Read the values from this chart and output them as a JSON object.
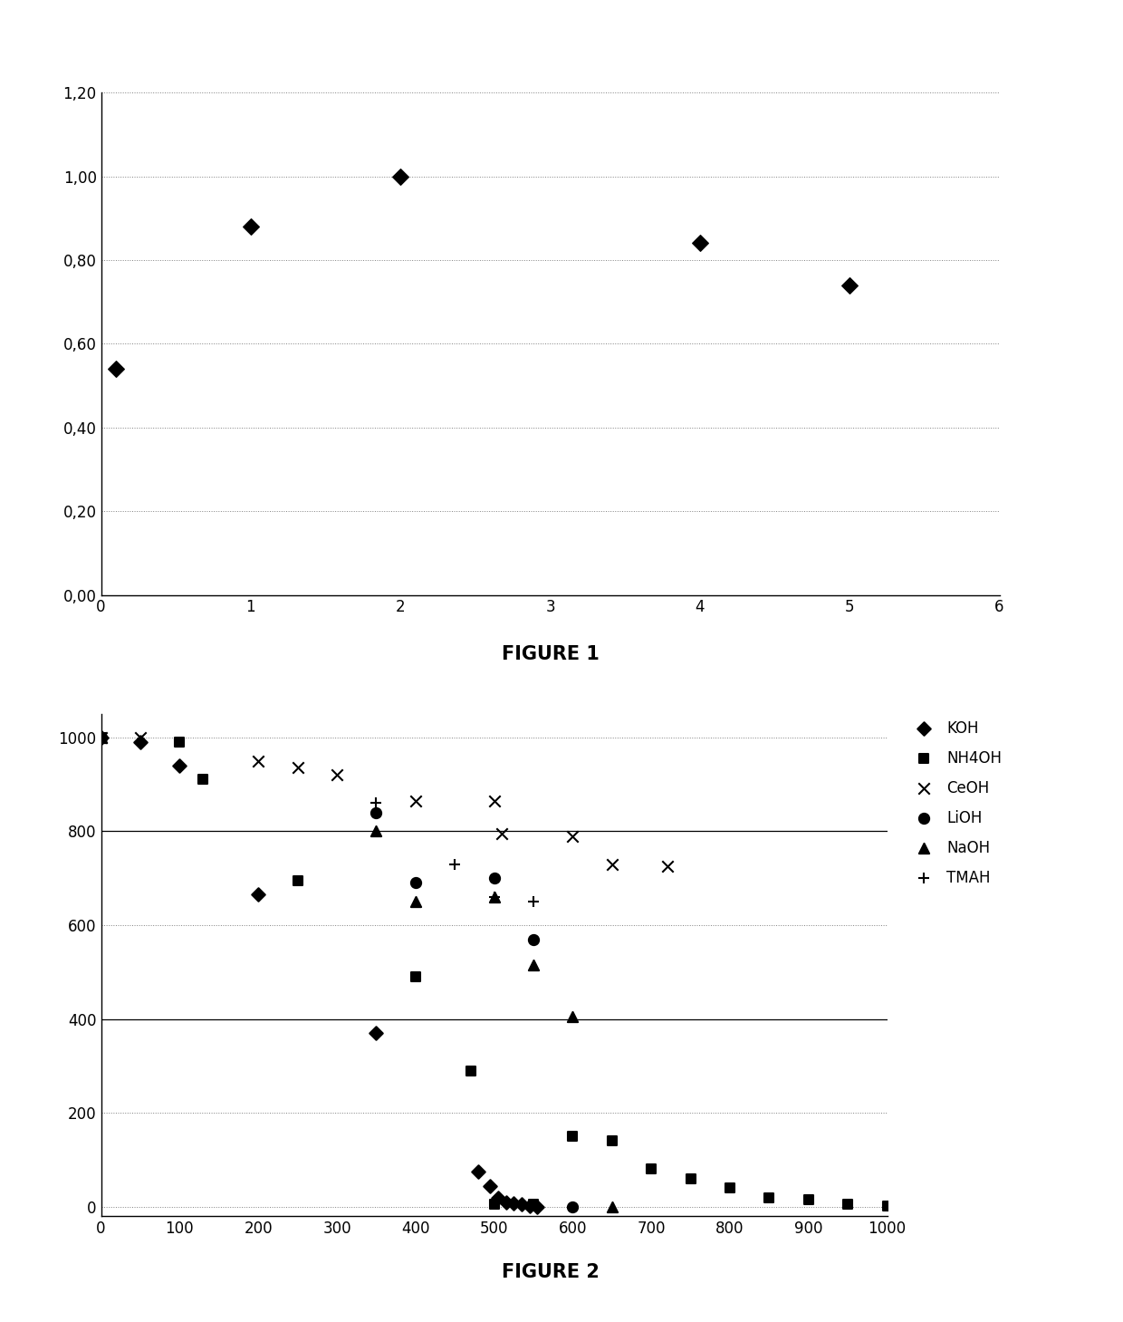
{
  "fig1": {
    "title": "FIGURE 1",
    "x": [
      0.1,
      1,
      2,
      4,
      5
    ],
    "y": [
      0.54,
      0.88,
      1.0,
      0.84,
      0.74
    ],
    "xlim": [
      0,
      6
    ],
    "ylim": [
      0,
      1.2
    ],
    "xticks": [
      0,
      1,
      2,
      3,
      4,
      5,
      6
    ],
    "yticks": [
      0.0,
      0.2,
      0.4,
      0.6,
      0.8,
      1.0,
      1.2
    ],
    "ytick_labels": [
      "0,00",
      "0,20",
      "0,40",
      "0,60",
      "0,80",
      "1,00",
      "1,20"
    ]
  },
  "fig2": {
    "title": "FIGURE 2",
    "xlim": [
      0,
      1000
    ],
    "ylim": [
      -20,
      1050
    ],
    "xticks": [
      0,
      100,
      200,
      300,
      400,
      500,
      600,
      700,
      800,
      900,
      1000
    ],
    "yticks": [
      0,
      200,
      400,
      600,
      800,
      1000
    ],
    "series": {
      "KOH": {
        "x": [
          0,
          50,
          100,
          200,
          350,
          480,
          495,
          505,
          515,
          525,
          535,
          545,
          555
        ],
        "y": [
          1000,
          990,
          940,
          665,
          370,
          75,
          45,
          20,
          10,
          8,
          5,
          2,
          0
        ]
      },
      "NH4OH": {
        "x": [
          0,
          100,
          130,
          250,
          400,
          470,
          500,
          550,
          600,
          650,
          700,
          750,
          800,
          850,
          900,
          950,
          1000
        ],
        "y": [
          1000,
          990,
          910,
          695,
          490,
          290,
          5,
          5,
          150,
          140,
          80,
          60,
          40,
          20,
          15,
          5,
          2
        ]
      },
      "CeOH": {
        "x": [
          0,
          50,
          200,
          250,
          300,
          400,
          500,
          510,
          600,
          650,
          720
        ],
        "y": [
          1000,
          1000,
          950,
          935,
          920,
          865,
          865,
          795,
          790,
          730,
          725
        ]
      },
      "LiOH": {
        "x": [
          0,
          350,
          400,
          500,
          550,
          600
        ],
        "y": [
          1000,
          840,
          690,
          700,
          570,
          0
        ]
      },
      "NaOH": {
        "x": [
          0,
          350,
          400,
          500,
          550,
          600,
          650
        ],
        "y": [
          1000,
          800,
          650,
          660,
          515,
          405,
          0
        ]
      },
      "TMAH": {
        "x": [
          0,
          350,
          450,
          500,
          550,
          600
        ],
        "y": [
          1000,
          860,
          730,
          660,
          650,
          0
        ]
      }
    },
    "markers": {
      "KOH": "D",
      "NH4OH": "s",
      "CeOH": "x",
      "LiOH": "o",
      "NaOH": "^",
      "TMAH": "+"
    },
    "sizes": {
      "KOH": 55,
      "NH4OH": 50,
      "CeOH": 80,
      "LiOH": 65,
      "NaOH": 65,
      "TMAH": 80
    },
    "legend_labels": [
      "KOH",
      "NH4OH",
      "CeOH",
      "LiOH",
      "NaOH",
      "TMAH"
    ]
  },
  "background_color": "#ffffff",
  "fig1_title_fontsize": 15,
  "fig2_title_fontsize": 15,
  "tick_fontsize": 12
}
